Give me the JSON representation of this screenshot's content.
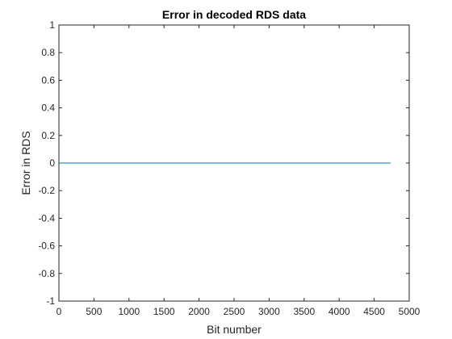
{
  "chart_data": {
    "type": "line",
    "title": "Error in decoded RDS data",
    "xlabel": "Bit number",
    "ylabel": "Error in RDS",
    "xlim": [
      0,
      5000
    ],
    "ylim": [
      -1,
      1
    ],
    "xticks": [
      0,
      500,
      1000,
      1500,
      2000,
      2500,
      3000,
      3500,
      4000,
      4500,
      5000
    ],
    "yticks": [
      -1,
      -0.8,
      -0.6,
      -0.4,
      -0.2,
      0,
      0.2,
      0.4,
      0.6,
      0.8,
      1
    ],
    "xtick_labels": [
      "0",
      "500",
      "1000",
      "1500",
      "2000",
      "2500",
      "3000",
      "3500",
      "4000",
      "4500",
      "5000"
    ],
    "ytick_labels": [
      "-1",
      "-0.8",
      "-0.6",
      "-0.4",
      "-0.2",
      "0",
      "0.2",
      "0.4",
      "0.6",
      "0.8",
      "1"
    ],
    "grid": false,
    "series": [
      {
        "color": "#0072BD",
        "x": [
          1,
          4736
        ],
        "y": [
          0,
          0
        ]
      }
    ]
  }
}
